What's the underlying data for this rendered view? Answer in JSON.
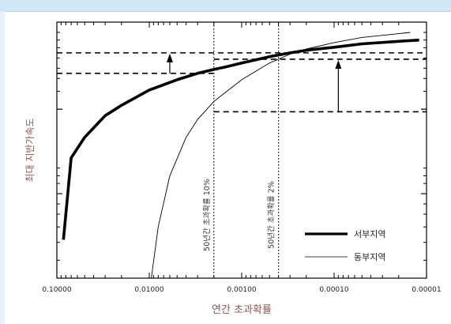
{
  "chart_data": {
    "type": "line",
    "xlabel": "연간 초과확률",
    "ylabel": "최대 지반가속도",
    "x_scale": "log-reversed",
    "x_ticks": [
      "0.10000",
      "0.01000",
      "0.00100",
      "0.00010",
      "0.00001"
    ],
    "x_tick_values": [
      0.1,
      0.01,
      0.001,
      0.0001,
      1e-05
    ],
    "xlim": [
      0.1,
      1e-05
    ],
    "grid": false,
    "legend_position": "bottom-right",
    "series": [
      {
        "name": "서부지역",
        "style": "thick",
        "x": [
          0.085,
          0.07,
          0.05,
          0.03,
          0.02,
          0.01,
          0.005,
          0.003,
          0.002,
          0.0015,
          0.001,
          0.0005,
          0.0003,
          0.0002,
          0.0001,
          5e-05,
          2e-05,
          1.2e-05
        ],
        "y": [
          0.15,
          0.47,
          0.55,
          0.635,
          0.675,
          0.735,
          0.775,
          0.8,
          0.815,
          0.825,
          0.84,
          0.865,
          0.88,
          0.89,
          0.902,
          0.915,
          0.925,
          0.93
        ]
      },
      {
        "name": "동부지역",
        "style": "thin",
        "x": [
          0.0095,
          0.008,
          0.006,
          0.004,
          0.003,
          0.002,
          0.001,
          0.0005,
          0.0003,
          0.0002,
          0.0001,
          5e-05,
          2e-05,
          1.5e-05
        ],
        "y": [
          0.0,
          0.2,
          0.4,
          0.55,
          0.62,
          0.69,
          0.775,
          0.84,
          0.875,
          0.895,
          0.92,
          0.94,
          0.955,
          0.96
        ]
      }
    ],
    "vertical_lines": [
      {
        "x": 0.002,
        "label": "50년간 초과확률 10%"
      },
      {
        "x": 0.0004,
        "label": "50년간 초과확률 2%"
      }
    ],
    "reference_levels": {
      "west_10pct": 0.8,
      "west_2pct": 0.88,
      "east_10pct": 0.65,
      "east_2pct": 0.855
    }
  },
  "colors": {
    "axis_label": "#8a5a4a",
    "line": "#000000",
    "topbar": "#cfe7f6"
  }
}
